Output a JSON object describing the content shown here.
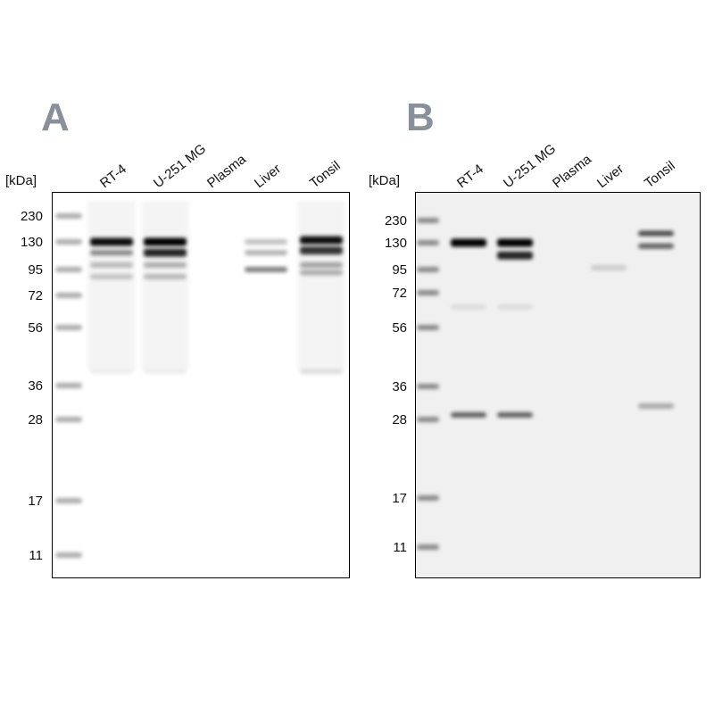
{
  "unit_label": "[kDa]",
  "panels": [
    {
      "letter": "A",
      "background": "#ffffff",
      "lanes": [
        "RT-4",
        "U-251 MG",
        "Plasma",
        "Liver",
        "Tonsil"
      ],
      "markers": [
        "230",
        "130",
        "95",
        "72",
        "56",
        "36",
        "28",
        "17",
        "11"
      ],
      "bands": [
        {
          "lane": 0,
          "kda": 130,
          "intensity": 0.95
        },
        {
          "lane": 0,
          "kda": 115,
          "intensity": 0.45
        },
        {
          "lane": 0,
          "kda": 100,
          "intensity": 0.25
        },
        {
          "lane": 0,
          "kda": 88,
          "intensity": 0.2
        },
        {
          "lane": 0,
          "kda": 40,
          "intensity": 0.06
        },
        {
          "lane": 1,
          "kda": 130,
          "intensity": 1.0
        },
        {
          "lane": 1,
          "kda": 115,
          "intensity": 0.85
        },
        {
          "lane": 1,
          "kda": 100,
          "intensity": 0.3
        },
        {
          "lane": 1,
          "kda": 88,
          "intensity": 0.25
        },
        {
          "lane": 1,
          "kda": 40,
          "intensity": 0.06
        },
        {
          "lane": 3,
          "kda": 130,
          "intensity": 0.25
        },
        {
          "lane": 3,
          "kda": 115,
          "intensity": 0.3
        },
        {
          "lane": 3,
          "kda": 95,
          "intensity": 0.5
        },
        {
          "lane": 4,
          "kda": 135,
          "intensity": 0.95
        },
        {
          "lane": 4,
          "kda": 118,
          "intensity": 0.8
        },
        {
          "lane": 4,
          "kda": 100,
          "intensity": 0.35
        },
        {
          "lane": 4,
          "kda": 92,
          "intensity": 0.3
        },
        {
          "lane": 4,
          "kda": 40,
          "intensity": 0.12
        }
      ]
    },
    {
      "letter": "B",
      "background": "#f0f0f0",
      "lanes": [
        "RT-4",
        "U-251 MG",
        "Plasma",
        "Liver",
        "Tonsil"
      ],
      "markers": [
        "230",
        "130",
        "95",
        "72",
        "56",
        "36",
        "28",
        "17",
        "11"
      ],
      "bands": [
        {
          "lane": 0,
          "kda": 130,
          "intensity": 1.0
        },
        {
          "lane": 0,
          "kda": 65,
          "intensity": 0.08
        },
        {
          "lane": 0,
          "kda": 29,
          "intensity": 0.6
        },
        {
          "lane": 1,
          "kda": 130,
          "intensity": 1.0
        },
        {
          "lane": 1,
          "kda": 112,
          "intensity": 0.85
        },
        {
          "lane": 1,
          "kda": 65,
          "intensity": 0.08
        },
        {
          "lane": 1,
          "kda": 29,
          "intensity": 0.6
        },
        {
          "lane": 3,
          "kda": 97,
          "intensity": 0.15
        },
        {
          "lane": 4,
          "kda": 165,
          "intensity": 0.7
        },
        {
          "lane": 4,
          "kda": 125,
          "intensity": 0.6
        },
        {
          "lane": 4,
          "kda": 31,
          "intensity": 0.3
        }
      ]
    }
  ]
}
